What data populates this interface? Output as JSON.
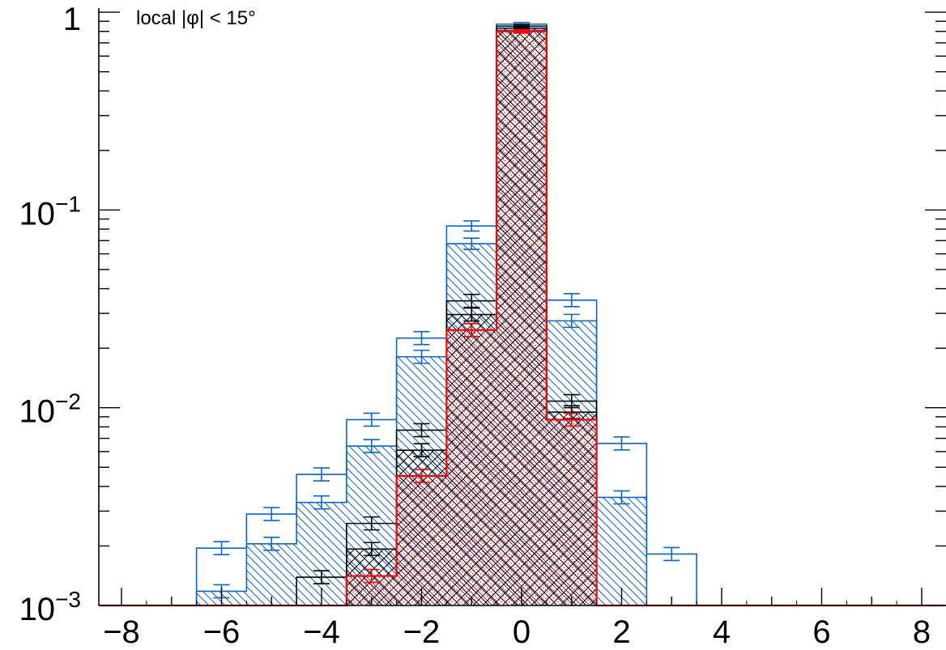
{
  "chart_data": {
    "type": "histogram",
    "annotation": "local |φ| < 15°",
    "title": "",
    "xlabel": "",
    "ylabel": "",
    "xlim": [
      -8,
      8
    ],
    "ylim": [
      0.001,
      1.3
    ],
    "y_scale": "log",
    "grid": false,
    "bin_edges": [
      -8.5,
      -7.5,
      -6.5,
      -5.5,
      -4.5,
      -3.5,
      -2.5,
      -1.5,
      -0.5,
      0.5,
      1.5,
      2.5,
      3.5,
      4.5,
      5.5,
      6.5,
      7.5,
      8.5
    ],
    "x_ticks": [
      {
        "value": -8,
        "label": "−8"
      },
      {
        "value": -6,
        "label": "−6"
      },
      {
        "value": -4,
        "label": "−4"
      },
      {
        "value": -2,
        "label": "−2"
      },
      {
        "value": 0,
        "label": "0"
      },
      {
        "value": 2,
        "label": "2"
      },
      {
        "value": 4,
        "label": "4"
      },
      {
        "value": 6,
        "label": "6"
      },
      {
        "value": 8,
        "label": "8"
      }
    ],
    "y_ticks": [
      {
        "value": 1,
        "base": "1",
        "exp": ""
      },
      {
        "value": 0.1,
        "base": "10",
        "exp": "−1"
      },
      {
        "value": 0.01,
        "base": "10",
        "exp": "−2"
      },
      {
        "value": 0.001,
        "base": "10",
        "exp": "−3"
      }
    ],
    "series": [
      {
        "name": "",
        "color": "#0a67c9",
        "fill": "none",
        "values": [
          0,
          0,
          0.00195,
          0.0029,
          0.0046,
          0.0087,
          0.0225,
          0.083,
          0.87,
          0.035,
          0.0066,
          0.00182,
          0,
          0,
          0,
          0,
          0
        ]
      },
      {
        "name": "",
        "color": "#0a67c9",
        "fill": "hatch-backslash",
        "values": [
          0,
          0,
          0.00118,
          0.00205,
          0.00332,
          0.0064,
          0.0181,
          0.0675,
          0.81,
          0.0275,
          0.00352,
          0,
          0,
          0,
          0,
          0,
          0
        ]
      },
      {
        "name": "",
        "color": "#000000",
        "fill": "none",
        "values": [
          0,
          0,
          0,
          0,
          0.00139,
          0.0026,
          0.0077,
          0.0347,
          0.85,
          0.0108,
          0,
          0,
          0,
          0,
          0,
          0,
          0
        ]
      },
      {
        "name": "",
        "color": "#000000",
        "fill": "hatch-cross",
        "values": [
          0,
          0,
          0,
          0,
          0,
          0.00193,
          0.0061,
          0.0296,
          0.83,
          0.0095,
          0,
          0,
          0,
          0,
          0,
          0,
          0
        ]
      },
      {
        "name": "",
        "color": "#ff0000",
        "fill": "hatch-dots",
        "values": [
          0,
          0,
          0,
          0,
          0,
          0.00141,
          0.00452,
          0.0247,
          0.8,
          0.0087,
          0,
          0,
          0,
          0,
          0,
          0,
          0
        ]
      }
    ]
  }
}
